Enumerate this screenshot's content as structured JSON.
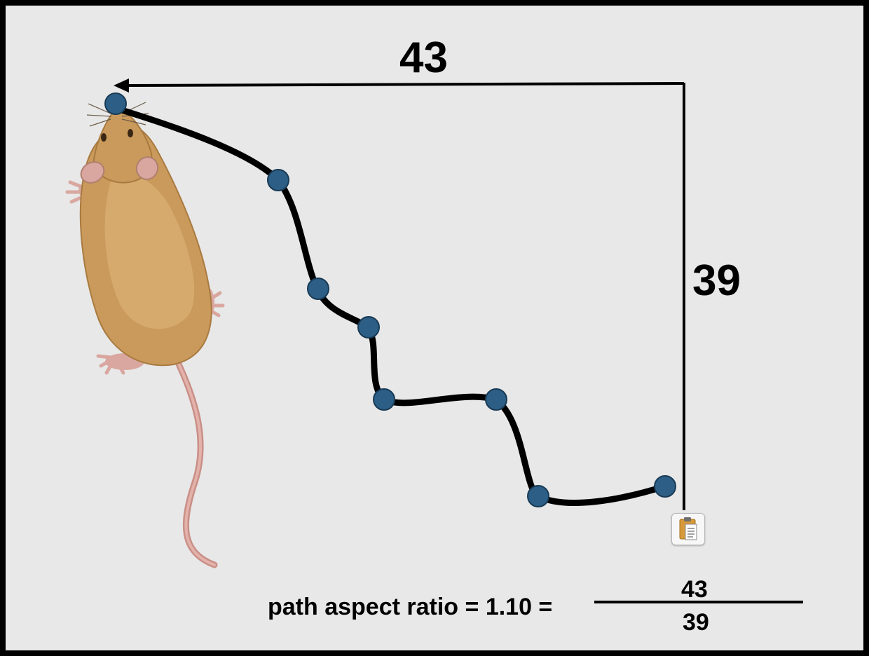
{
  "diagram": {
    "horizontal_extent": "43",
    "vertical_extent": "39",
    "formula_prefix": "path aspect ratio = 1.10 =",
    "numerator": "43",
    "denominator": "39"
  },
  "colors": {
    "background": "#e8e8e8",
    "border": "#000000",
    "path": "#000000",
    "waypoint": "#2d5f86",
    "mouse_fur": "#c99a5b",
    "mouse_skin": "#d9a7a0"
  },
  "icons": {
    "clipboard": "clipboard-icon",
    "subject": "mouse-icon"
  }
}
